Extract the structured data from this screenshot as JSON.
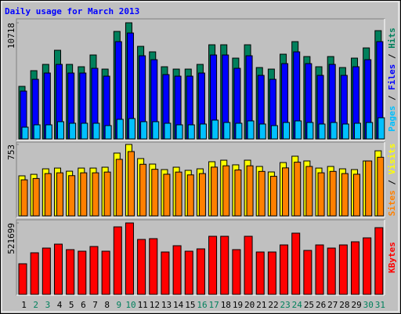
{
  "chart_data": [
    {
      "type": "bar",
      "title": "Daily usage for March 2013",
      "ylim": [
        0,
        10718
      ],
      "yticks": [
        10718
      ],
      "legend_separator": "/",
      "series": [
        {
          "name": "Hits",
          "color": "#00805c",
          "values": [
            4851,
            6299,
            6878,
            8181,
            6878,
            6661,
            7747,
            6444,
            9919,
            10718,
            8543,
            8036,
            6661,
            6444,
            6444,
            6878,
            8688,
            8688,
            7457,
            8688,
            6588,
            6444,
            7819,
            8978,
            7602,
            6661,
            7602,
            6588,
            7457,
            8398,
            9991
          ]
        },
        {
          "name": "Files",
          "color": "#0000ff",
          "values": [
            4416,
            5502,
            6082,
            6878,
            6082,
            6082,
            6516,
            5792,
            8978,
            9774,
            7674,
            7312,
            5937,
            5792,
            5792,
            6082,
            7747,
            7747,
            6516,
            7674,
            5864,
            5502,
            6950,
            8036,
            6950,
            5864,
            6878,
            5864,
            6661,
            7312,
            8978
          ]
        },
        {
          "name": "Pages",
          "color": "#00c0ff",
          "values": [
            1086,
            1303,
            1303,
            1593,
            1448,
            1448,
            1448,
            1231,
            1810,
            1882,
            1593,
            1593,
            1448,
            1303,
            1303,
            1376,
            1738,
            1520,
            1448,
            1665,
            1376,
            1231,
            1520,
            1665,
            1520,
            1376,
            1520,
            1376,
            1448,
            1520,
            1955
          ]
        }
      ]
    },
    {
      "type": "bar",
      "ylim": [
        0,
        753
      ],
      "yticks": [
        753
      ],
      "legend_separator": "/",
      "series": [
        {
          "name": "Visits",
          "color": "#ffff00",
          "values": [
            422,
            438,
            496,
            504,
            471,
            504,
            504,
            513,
            662,
            753,
            604,
            546,
            488,
            513,
            480,
            496,
            571,
            587,
            538,
            587,
            521,
            463,
            562,
            629,
            579,
            504,
            521,
            496,
            488,
            579,
            686
          ]
        },
        {
          "name": "Sites",
          "color": "#ff8000",
          "values": [
            380,
            394,
            446,
            454,
            424,
            454,
            454,
            462,
            596,
            678,
            544,
            491,
            439,
            462,
            432,
            446,
            514,
            528,
            484,
            528,
            469,
            417,
            506,
            566,
            521,
            454,
            469,
            446,
            439,
            579,
            618
          ]
        }
      ]
    },
    {
      "type": "bar",
      "ylim": [
        0,
        521699
      ],
      "yticks": [
        521699
      ],
      "categories": [
        "1",
        "2",
        "3",
        "4",
        "5",
        "6",
        "7",
        "8",
        "9",
        "10",
        "11",
        "12",
        "13",
        "14",
        "15",
        "16",
        "17",
        "18",
        "19",
        "20",
        "21",
        "22",
        "23",
        "24",
        "25",
        "26",
        "27",
        "28",
        "29",
        "30",
        "31"
      ],
      "category_colors": [
        "#000000",
        "#00805c",
        "#00805c",
        "#000000",
        "#000000",
        "#000000",
        "#000000",
        "#000000",
        "#00805c",
        "#00805c",
        "#000000",
        "#000000",
        "#000000",
        "#000000",
        "#000000",
        "#00805c",
        "#00805c",
        "#000000",
        "#000000",
        "#000000",
        "#000000",
        "#000000",
        "#00805c",
        "#00805c",
        "#000000",
        "#000000",
        "#000000",
        "#000000",
        "#000000",
        "#00805c",
        "#00805c"
      ],
      "series": [
        {
          "name": "KBytes",
          "color": "#ff0000",
          "values": [
            223587,
            303849,
            338247,
            366912,
            326781,
            315315,
            349713,
            315315,
            493038,
            521699,
            401310,
            407043,
            309582,
            355446,
            315315,
            332514,
            424242,
            424242,
            326781,
            424242,
            309582,
            309582,
            361179,
            447174,
            321048,
            361179,
            338247,
            361179,
            384111,
            412776,
            487305
          ]
        }
      ]
    }
  ]
}
